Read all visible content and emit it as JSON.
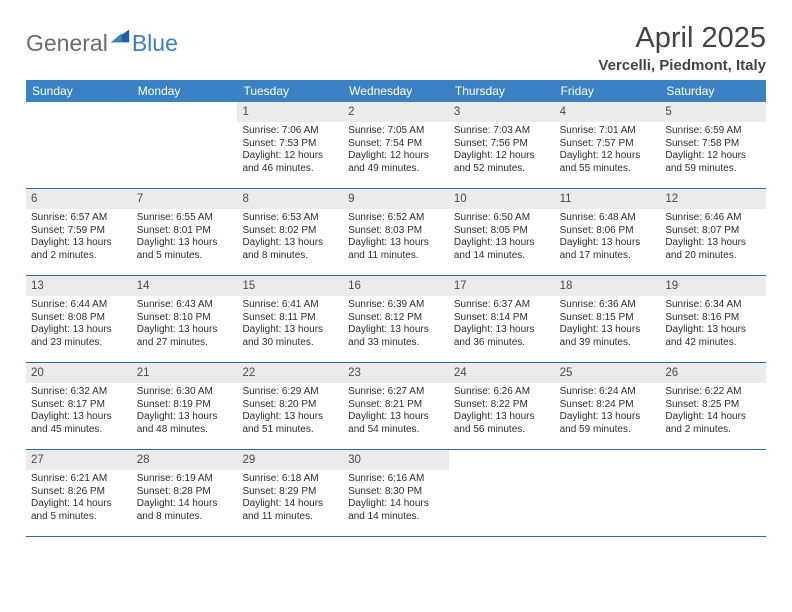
{
  "logo": {
    "text1": "General",
    "text2": "Blue"
  },
  "title": "April 2025",
  "location": "Vercelli, Piedmont, Italy",
  "colors": {
    "header_bg": "#3b82c4",
    "header_text": "#ffffff",
    "daynum_bg": "#ebebeb",
    "daynum_text": "#4a4a4a",
    "body_text": "#2e2e2e",
    "rule": "#2f6aa8",
    "page_bg": "#ffffff"
  },
  "typography": {
    "title_fontsize": 29,
    "location_fontsize": 15,
    "dow_fontsize": 12,
    "daynum_fontsize": 11.5,
    "body_fontsize": 10
  },
  "days_of_week": [
    "Sunday",
    "Monday",
    "Tuesday",
    "Wednesday",
    "Thursday",
    "Friday",
    "Saturday"
  ],
  "weeks": [
    [
      {
        "n": "",
        "sunrise": "",
        "sunset": "",
        "daylight": ""
      },
      {
        "n": "",
        "sunrise": "",
        "sunset": "",
        "daylight": ""
      },
      {
        "n": "1",
        "sunrise": "Sunrise: 7:06 AM",
        "sunset": "Sunset: 7:53 PM",
        "daylight": "Daylight: 12 hours and 46 minutes."
      },
      {
        "n": "2",
        "sunrise": "Sunrise: 7:05 AM",
        "sunset": "Sunset: 7:54 PM",
        "daylight": "Daylight: 12 hours and 49 minutes."
      },
      {
        "n": "3",
        "sunrise": "Sunrise: 7:03 AM",
        "sunset": "Sunset: 7:56 PM",
        "daylight": "Daylight: 12 hours and 52 minutes."
      },
      {
        "n": "4",
        "sunrise": "Sunrise: 7:01 AM",
        "sunset": "Sunset: 7:57 PM",
        "daylight": "Daylight: 12 hours and 55 minutes."
      },
      {
        "n": "5",
        "sunrise": "Sunrise: 6:59 AM",
        "sunset": "Sunset: 7:58 PM",
        "daylight": "Daylight: 12 hours and 59 minutes."
      }
    ],
    [
      {
        "n": "6",
        "sunrise": "Sunrise: 6:57 AM",
        "sunset": "Sunset: 7:59 PM",
        "daylight": "Daylight: 13 hours and 2 minutes."
      },
      {
        "n": "7",
        "sunrise": "Sunrise: 6:55 AM",
        "sunset": "Sunset: 8:01 PM",
        "daylight": "Daylight: 13 hours and 5 minutes."
      },
      {
        "n": "8",
        "sunrise": "Sunrise: 6:53 AM",
        "sunset": "Sunset: 8:02 PM",
        "daylight": "Daylight: 13 hours and 8 minutes."
      },
      {
        "n": "9",
        "sunrise": "Sunrise: 6:52 AM",
        "sunset": "Sunset: 8:03 PM",
        "daylight": "Daylight: 13 hours and 11 minutes."
      },
      {
        "n": "10",
        "sunrise": "Sunrise: 6:50 AM",
        "sunset": "Sunset: 8:05 PM",
        "daylight": "Daylight: 13 hours and 14 minutes."
      },
      {
        "n": "11",
        "sunrise": "Sunrise: 6:48 AM",
        "sunset": "Sunset: 8:06 PM",
        "daylight": "Daylight: 13 hours and 17 minutes."
      },
      {
        "n": "12",
        "sunrise": "Sunrise: 6:46 AM",
        "sunset": "Sunset: 8:07 PM",
        "daylight": "Daylight: 13 hours and 20 minutes."
      }
    ],
    [
      {
        "n": "13",
        "sunrise": "Sunrise: 6:44 AM",
        "sunset": "Sunset: 8:08 PM",
        "daylight": "Daylight: 13 hours and 23 minutes."
      },
      {
        "n": "14",
        "sunrise": "Sunrise: 6:43 AM",
        "sunset": "Sunset: 8:10 PM",
        "daylight": "Daylight: 13 hours and 27 minutes."
      },
      {
        "n": "15",
        "sunrise": "Sunrise: 6:41 AM",
        "sunset": "Sunset: 8:11 PM",
        "daylight": "Daylight: 13 hours and 30 minutes."
      },
      {
        "n": "16",
        "sunrise": "Sunrise: 6:39 AM",
        "sunset": "Sunset: 8:12 PM",
        "daylight": "Daylight: 13 hours and 33 minutes."
      },
      {
        "n": "17",
        "sunrise": "Sunrise: 6:37 AM",
        "sunset": "Sunset: 8:14 PM",
        "daylight": "Daylight: 13 hours and 36 minutes."
      },
      {
        "n": "18",
        "sunrise": "Sunrise: 6:36 AM",
        "sunset": "Sunset: 8:15 PM",
        "daylight": "Daylight: 13 hours and 39 minutes."
      },
      {
        "n": "19",
        "sunrise": "Sunrise: 6:34 AM",
        "sunset": "Sunset: 8:16 PM",
        "daylight": "Daylight: 13 hours and 42 minutes."
      }
    ],
    [
      {
        "n": "20",
        "sunrise": "Sunrise: 6:32 AM",
        "sunset": "Sunset: 8:17 PM",
        "daylight": "Daylight: 13 hours and 45 minutes."
      },
      {
        "n": "21",
        "sunrise": "Sunrise: 6:30 AM",
        "sunset": "Sunset: 8:19 PM",
        "daylight": "Daylight: 13 hours and 48 minutes."
      },
      {
        "n": "22",
        "sunrise": "Sunrise: 6:29 AM",
        "sunset": "Sunset: 8:20 PM",
        "daylight": "Daylight: 13 hours and 51 minutes."
      },
      {
        "n": "23",
        "sunrise": "Sunrise: 6:27 AM",
        "sunset": "Sunset: 8:21 PM",
        "daylight": "Daylight: 13 hours and 54 minutes."
      },
      {
        "n": "24",
        "sunrise": "Sunrise: 6:26 AM",
        "sunset": "Sunset: 8:22 PM",
        "daylight": "Daylight: 13 hours and 56 minutes."
      },
      {
        "n": "25",
        "sunrise": "Sunrise: 6:24 AM",
        "sunset": "Sunset: 8:24 PM",
        "daylight": "Daylight: 13 hours and 59 minutes."
      },
      {
        "n": "26",
        "sunrise": "Sunrise: 6:22 AM",
        "sunset": "Sunset: 8:25 PM",
        "daylight": "Daylight: 14 hours and 2 minutes."
      }
    ],
    [
      {
        "n": "27",
        "sunrise": "Sunrise: 6:21 AM",
        "sunset": "Sunset: 8:26 PM",
        "daylight": "Daylight: 14 hours and 5 minutes."
      },
      {
        "n": "28",
        "sunrise": "Sunrise: 6:19 AM",
        "sunset": "Sunset: 8:28 PM",
        "daylight": "Daylight: 14 hours and 8 minutes."
      },
      {
        "n": "29",
        "sunrise": "Sunrise: 6:18 AM",
        "sunset": "Sunset: 8:29 PM",
        "daylight": "Daylight: 14 hours and 11 minutes."
      },
      {
        "n": "30",
        "sunrise": "Sunrise: 6:16 AM",
        "sunset": "Sunset: 8:30 PM",
        "daylight": "Daylight: 14 hours and 14 minutes."
      },
      {
        "n": "",
        "sunrise": "",
        "sunset": "",
        "daylight": ""
      },
      {
        "n": "",
        "sunrise": "",
        "sunset": "",
        "daylight": ""
      },
      {
        "n": "",
        "sunrise": "",
        "sunset": "",
        "daylight": ""
      }
    ]
  ]
}
